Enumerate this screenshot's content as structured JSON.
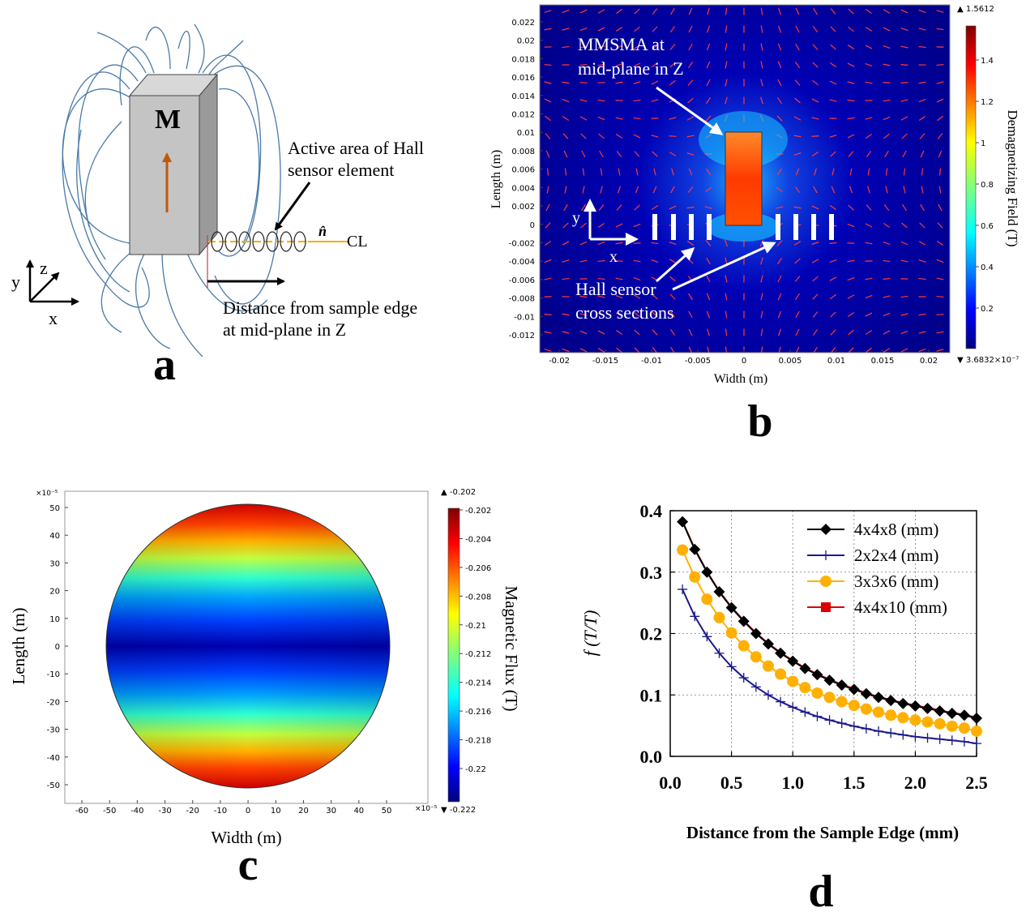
{
  "panels": {
    "a": {
      "label": "a",
      "magnet_label": "M",
      "active_area_label": [
        "Active area of Hall",
        "sensor element"
      ],
      "normal_label": "n̂",
      "centerline_label": "CL",
      "distance_label": [
        "Distance from sample edge",
        "at mid-plane in Z"
      ],
      "axes": {
        "x": "x",
        "y": "y",
        "z": "z"
      }
    },
    "b": {
      "label": "b",
      "xlabel": "Width (m)",
      "ylabel": "Length (m)",
      "colorbar_label": "Demagnetizing Field (T)",
      "colorbar_max": "▲ 1.5612",
      "colorbar_min": "▼ 3.6832×10⁻⁷",
      "colorbar_ticks": [
        "1.4",
        "1.2",
        "1",
        "0.8",
        "0.6",
        "0.4",
        "0.2"
      ],
      "annotation_mmsma": [
        "MMSMA at",
        "mid-plane in Z"
      ],
      "annotation_hall": [
        "Hall sensor",
        "cross sections"
      ],
      "axes": {
        "x": "x",
        "y": "y"
      },
      "x_ticks": [
        "-0.02",
        "-0.015",
        "-0.01",
        "-0.005",
        "0",
        "0.005",
        "0.01",
        "0.015",
        "0.02"
      ],
      "y_ticks": [
        "0.022",
        "0.02",
        "0.018",
        "0.016",
        "0.014",
        "0.012",
        "0.01",
        "0.008",
        "0.006",
        "0.004",
        "0.002",
        "0",
        "-0.002",
        "-0.004",
        "-0.006",
        "-0.008",
        "-0.01",
        "-0.012"
      ]
    },
    "c": {
      "label": "c",
      "xlabel": "Width (m)",
      "ylabel": "Length (m)",
      "x_multiplier": "×10⁻⁵",
      "y_multiplier": "×10⁻⁵",
      "colorbar_label": "Magnetic Flux (T)",
      "colorbar_max": "▲ -0.202",
      "colorbar_min": "▼ -0.222",
      "colorbar_ticks": [
        "-0.202",
        "-0.204",
        "-0.206",
        "-0.208",
        "-0.21",
        "-0.212",
        "-0.214",
        "-0.216",
        "-0.218",
        "-0.22"
      ],
      "x_ticks": [
        "-60",
        "-50",
        "-40",
        "-30",
        "-20",
        "-10",
        "0",
        "10",
        "20",
        "30",
        "40",
        "50"
      ],
      "y_ticks": [
        "50",
        "40",
        "30",
        "20",
        "10",
        "0",
        "-10",
        "-20",
        "-30",
        "-40",
        "-50"
      ]
    },
    "d": {
      "label": "d"
    }
  },
  "chart_data": {
    "type": "line",
    "xlabel": "Distance from the Sample Edge (mm)",
    "ylabel": "f (T/T)",
    "xlim": [
      0,
      2.5
    ],
    "ylim": [
      0,
      0.4
    ],
    "x_ticks": [
      "0.0",
      "0.5",
      "1.0",
      "1.5",
      "2.0",
      "2.5"
    ],
    "y_ticks": [
      "0.0",
      "0.1",
      "0.2",
      "0.3",
      "0.4"
    ],
    "grid": true,
    "legend_position": "top-right",
    "x": [
      0.1,
      0.2,
      0.3,
      0.4,
      0.5,
      0.6,
      0.7,
      0.8,
      0.9,
      1.0,
      1.1,
      1.2,
      1.3,
      1.4,
      1.5,
      1.6,
      1.7,
      1.8,
      1.9,
      2.0,
      2.1,
      2.2,
      2.3,
      2.4,
      2.5
    ],
    "series": [
      {
        "name": "4x4x8 (mm)",
        "color": "#000000",
        "marker": "diamond",
        "values": [
          0.382,
          0.337,
          0.3,
          0.268,
          0.242,
          0.22,
          0.2,
          0.183,
          0.168,
          0.155,
          0.143,
          0.133,
          0.124,
          0.116,
          0.109,
          0.102,
          0.096,
          0.091,
          0.086,
          0.082,
          0.078,
          0.074,
          0.07,
          0.067,
          0.062
        ]
      },
      {
        "name": "2x2x4 (mm)",
        "color": "#1a1a8c",
        "marker": "plus",
        "values": [
          0.272,
          0.228,
          0.195,
          0.168,
          0.146,
          0.128,
          0.113,
          0.1,
          0.089,
          0.08,
          0.072,
          0.065,
          0.059,
          0.054,
          0.049,
          0.045,
          0.041,
          0.038,
          0.035,
          0.032,
          0.03,
          0.028,
          0.026,
          0.024,
          0.021
        ]
      },
      {
        "name": "3x3x6 (mm)",
        "color": "#ffb000",
        "marker": "circle",
        "values": [
          0.336,
          0.292,
          0.256,
          0.226,
          0.201,
          0.18,
          0.162,
          0.147,
          0.134,
          0.122,
          0.112,
          0.103,
          0.096,
          0.089,
          0.083,
          0.077,
          0.072,
          0.067,
          0.063,
          0.059,
          0.056,
          0.053,
          0.049,
          0.046,
          0.041
        ]
      },
      {
        "name": "4x4x10 (mm)",
        "color": "#dd0000",
        "marker": "square",
        "values": [
          0.383,
          0.338,
          0.301,
          0.269,
          0.243,
          0.221,
          0.201,
          0.184,
          0.169,
          0.156,
          0.144,
          0.134,
          0.125,
          0.117,
          0.11,
          0.103,
          0.097,
          0.092,
          0.087,
          0.083,
          0.079,
          0.075,
          0.071,
          0.068,
          0.063
        ]
      }
    ]
  }
}
